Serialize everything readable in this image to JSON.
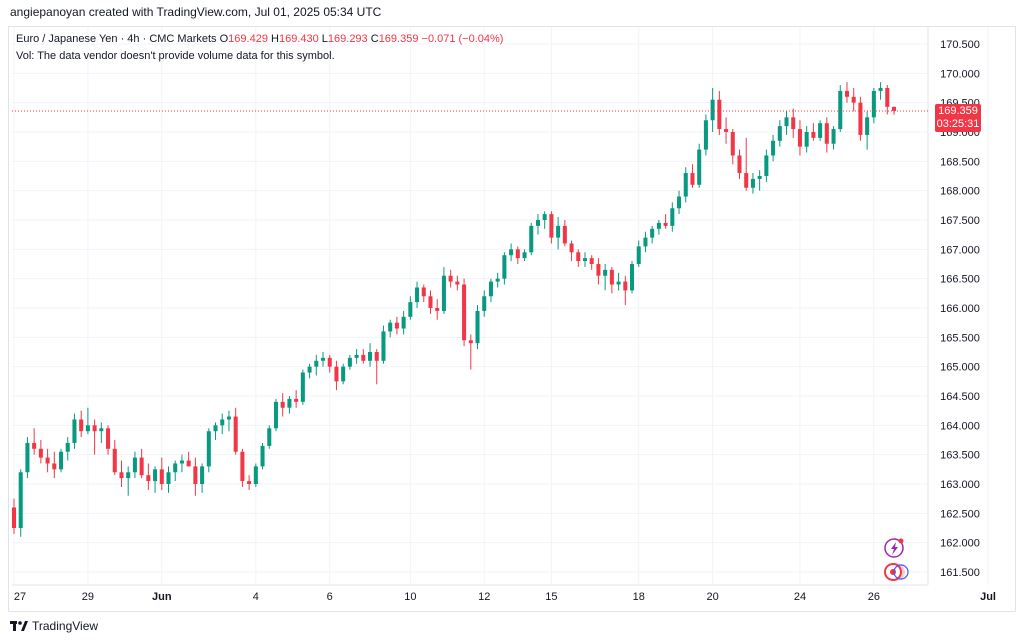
{
  "header": {
    "credit": "angiepanoyan created with TradingView.com, Jul 01, 2025 05:34 UTC"
  },
  "legend": {
    "symbol": "Euro / Japanese Yen · 4h · CMC Markets",
    "open_label": "O",
    "open": "169.429",
    "high_label": "H",
    "high": "169.430",
    "low_label": "L",
    "low": "169.293",
    "close_label": "C",
    "close": "169.359",
    "change": "−0.071 (−0.04%)",
    "volume_note": "Vol: The data vendor doesn't provide volume data for this symbol."
  },
  "price_tag": {
    "price": "169.359",
    "countdown": "03:25:31"
  },
  "footer": {
    "brand": "TradingView"
  },
  "colors": {
    "up": "#089981",
    "down": "#f23645",
    "grid": "#f0f3fa",
    "axis_text": "#131722"
  },
  "icons": [
    "lightning-icon",
    "replay-icon"
  ],
  "chart_data": {
    "type": "candlestick",
    "interval": "4h",
    "ylim": [
      161.3,
      170.8
    ],
    "y_ticks": [
      "170.500",
      "170.000",
      "169.500",
      "169.000",
      "168.500",
      "168.000",
      "167.500",
      "167.000",
      "166.500",
      "166.000",
      "165.500",
      "165.000",
      "164.500",
      "164.000",
      "163.500",
      "163.000",
      "162.500",
      "162.000",
      "161.500"
    ],
    "x_ticks": [
      {
        "label": "27",
        "index": 0
      },
      {
        "label": "29",
        "index": 11
      },
      {
        "label": "Jun",
        "index": 22
      },
      {
        "label": "4",
        "index": 36
      },
      {
        "label": "6",
        "index": 47
      },
      {
        "label": "10",
        "index": 59
      },
      {
        "label": "12",
        "index": 70
      },
      {
        "label": "15",
        "index": 80
      },
      {
        "label": "18",
        "index": 93
      },
      {
        "label": "20",
        "index": 104
      },
      {
        "label": "24",
        "index": 117
      },
      {
        "label": "26",
        "index": 128
      },
      {
        "label": "Jul",
        "index": 145
      }
    ],
    "last_price": 169.359,
    "candles": [
      [
        162.6,
        162.75,
        162.15,
        162.25
      ],
      [
        162.25,
        163.25,
        162.1,
        163.2
      ],
      [
        163.2,
        163.8,
        163.1,
        163.7
      ],
      [
        163.7,
        163.95,
        163.5,
        163.6
      ],
      [
        163.6,
        163.75,
        163.35,
        163.45
      ],
      [
        163.45,
        163.6,
        163.2,
        163.35
      ],
      [
        163.35,
        163.55,
        163.1,
        163.25
      ],
      [
        163.25,
        163.6,
        163.2,
        163.55
      ],
      [
        163.55,
        163.8,
        163.4,
        163.7
      ],
      [
        163.7,
        164.2,
        163.6,
        164.1
      ],
      [
        164.1,
        164.25,
        163.8,
        163.9
      ],
      [
        163.9,
        164.3,
        163.85,
        164.0
      ],
      [
        164.0,
        164.1,
        163.5,
        163.9
      ],
      [
        163.9,
        164.05,
        163.7,
        163.95
      ],
      [
        163.95,
        164.0,
        163.5,
        163.6
      ],
      [
        163.6,
        163.75,
        163.15,
        163.2
      ],
      [
        163.2,
        163.4,
        162.95,
        163.1
      ],
      [
        163.1,
        163.3,
        162.8,
        163.2
      ],
      [
        163.2,
        163.55,
        163.1,
        163.45
      ],
      [
        163.45,
        163.6,
        163.1,
        163.15
      ],
      [
        163.15,
        163.35,
        162.9,
        163.05
      ],
      [
        163.05,
        163.3,
        162.85,
        163.25
      ],
      [
        163.25,
        163.45,
        162.9,
        163.0
      ],
      [
        163.0,
        163.3,
        162.85,
        163.2
      ],
      [
        163.2,
        163.4,
        163.05,
        163.35
      ],
      [
        163.35,
        163.5,
        163.2,
        163.4
      ],
      [
        163.4,
        163.55,
        163.3,
        163.3
      ],
      [
        163.3,
        163.45,
        162.8,
        163.0
      ],
      [
        163.0,
        163.35,
        162.85,
        163.3
      ],
      [
        163.3,
        163.95,
        163.2,
        163.9
      ],
      [
        163.9,
        164.05,
        163.75,
        164.0
      ],
      [
        164.0,
        164.2,
        163.85,
        164.1
      ],
      [
        164.1,
        164.25,
        163.9,
        164.15
      ],
      [
        164.15,
        164.3,
        163.5,
        163.55
      ],
      [
        163.55,
        163.6,
        162.95,
        163.05
      ],
      [
        163.05,
        163.15,
        162.9,
        163.0
      ],
      [
        163.0,
        163.35,
        162.95,
        163.3
      ],
      [
        163.3,
        163.7,
        163.25,
        163.65
      ],
      [
        163.65,
        164.0,
        163.6,
        163.95
      ],
      [
        163.95,
        164.45,
        163.9,
        164.4
      ],
      [
        164.4,
        164.55,
        164.15,
        164.3
      ],
      [
        164.3,
        164.5,
        164.2,
        164.45
      ],
      [
        164.45,
        164.6,
        164.3,
        164.4
      ],
      [
        164.4,
        164.95,
        164.35,
        164.9
      ],
      [
        164.9,
        165.05,
        164.8,
        165.0
      ],
      [
        165.0,
        165.2,
        164.85,
        165.1
      ],
      [
        165.1,
        165.25,
        165.0,
        165.15
      ],
      [
        165.15,
        165.2,
        164.9,
        165.0
      ],
      [
        165.0,
        165.1,
        164.6,
        164.75
      ],
      [
        164.75,
        165.05,
        164.7,
        165.0
      ],
      [
        165.0,
        165.2,
        164.95,
        165.15
      ],
      [
        165.15,
        165.3,
        165.05,
        165.2
      ],
      [
        165.2,
        165.3,
        165.05,
        165.1
      ],
      [
        165.1,
        165.4,
        165.0,
        165.25
      ],
      [
        165.25,
        165.3,
        164.7,
        165.1
      ],
      [
        165.1,
        165.7,
        165.05,
        165.6
      ],
      [
        165.6,
        165.8,
        165.5,
        165.75
      ],
      [
        165.75,
        165.85,
        165.55,
        165.65
      ],
      [
        165.65,
        165.95,
        165.55,
        165.85
      ],
      [
        165.85,
        166.2,
        165.8,
        166.1
      ],
      [
        166.1,
        166.45,
        166.0,
        166.35
      ],
      [
        166.35,
        166.4,
        166.1,
        166.2
      ],
      [
        166.2,
        166.3,
        165.9,
        166.0
      ],
      [
        166.0,
        166.15,
        165.8,
        165.95
      ],
      [
        165.95,
        166.7,
        165.9,
        166.55
      ],
      [
        166.55,
        166.65,
        166.35,
        166.45
      ],
      [
        166.45,
        166.55,
        166.3,
        166.4
      ],
      [
        166.4,
        166.5,
        165.35,
        165.45
      ],
      [
        165.45,
        165.55,
        164.95,
        165.4
      ],
      [
        165.4,
        166.05,
        165.3,
        165.95
      ],
      [
        165.95,
        166.3,
        165.85,
        166.2
      ],
      [
        166.2,
        166.5,
        166.1,
        166.45
      ],
      [
        166.45,
        166.6,
        166.35,
        166.5
      ],
      [
        166.5,
        166.95,
        166.4,
        166.9
      ],
      [
        166.9,
        167.1,
        166.8,
        167.0
      ],
      [
        167.0,
        167.05,
        166.75,
        166.85
      ],
      [
        166.85,
        167.0,
        166.8,
        166.95
      ],
      [
        166.95,
        167.45,
        166.9,
        167.4
      ],
      [
        167.4,
        167.6,
        167.25,
        167.5
      ],
      [
        167.5,
        167.65,
        167.35,
        167.6
      ],
      [
        167.6,
        167.65,
        167.1,
        167.2
      ],
      [
        167.2,
        167.55,
        167.0,
        167.4
      ],
      [
        167.4,
        167.5,
        167.05,
        167.1
      ],
      [
        167.1,
        167.15,
        166.8,
        166.95
      ],
      [
        166.95,
        167.0,
        166.7,
        166.8
      ],
      [
        166.8,
        166.95,
        166.7,
        166.85
      ],
      [
        166.85,
        166.9,
        166.65,
        166.75
      ],
      [
        166.75,
        166.85,
        166.4,
        166.55
      ],
      [
        166.55,
        166.75,
        166.3,
        166.65
      ],
      [
        166.65,
        166.7,
        166.25,
        166.4
      ],
      [
        166.4,
        166.6,
        166.3,
        166.45
      ],
      [
        166.45,
        166.55,
        166.05,
        166.3
      ],
      [
        166.3,
        166.8,
        166.25,
        166.75
      ],
      [
        166.75,
        167.15,
        166.7,
        167.05
      ],
      [
        167.05,
        167.3,
        166.95,
        167.2
      ],
      [
        167.2,
        167.4,
        167.1,
        167.35
      ],
      [
        167.35,
        167.5,
        167.25,
        167.45
      ],
      [
        167.45,
        167.6,
        167.35,
        167.4
      ],
      [
        167.4,
        167.8,
        167.3,
        167.7
      ],
      [
        167.7,
        168.0,
        167.6,
        167.9
      ],
      [
        167.9,
        168.4,
        167.8,
        168.3
      ],
      [
        168.3,
        168.45,
        168.05,
        168.1
      ],
      [
        168.1,
        168.8,
        168.05,
        168.7
      ],
      [
        168.7,
        169.3,
        168.6,
        169.2
      ],
      [
        169.2,
        169.75,
        169.0,
        169.55
      ],
      [
        169.55,
        169.7,
        168.95,
        169.05
      ],
      [
        169.05,
        169.25,
        168.8,
        169.0
      ],
      [
        169.0,
        169.05,
        168.45,
        168.6
      ],
      [
        168.6,
        168.7,
        168.2,
        168.3
      ],
      [
        168.3,
        168.9,
        168.0,
        168.05
      ],
      [
        168.05,
        168.3,
        167.95,
        168.2
      ],
      [
        168.2,
        168.35,
        168.0,
        168.25
      ],
      [
        168.25,
        168.7,
        168.15,
        168.6
      ],
      [
        168.6,
        168.95,
        168.5,
        168.85
      ],
      [
        168.85,
        169.2,
        168.75,
        169.1
      ],
      [
        169.1,
        169.35,
        168.95,
        169.25
      ],
      [
        169.25,
        169.4,
        168.9,
        169.05
      ],
      [
        169.05,
        169.2,
        168.6,
        168.75
      ],
      [
        168.75,
        169.1,
        168.65,
        169.0
      ],
      [
        169.0,
        169.15,
        168.85,
        168.9
      ],
      [
        168.9,
        169.2,
        168.85,
        169.15
      ],
      [
        169.15,
        169.25,
        168.65,
        168.8
      ],
      [
        168.8,
        169.1,
        168.7,
        169.05
      ],
      [
        169.05,
        169.8,
        169.0,
        169.7
      ],
      [
        169.7,
        169.85,
        169.5,
        169.6
      ],
      [
        169.6,
        169.75,
        169.35,
        169.5
      ],
      [
        169.5,
        169.6,
        168.85,
        168.95
      ],
      [
        168.95,
        169.35,
        168.7,
        169.25
      ],
      [
        169.25,
        169.75,
        169.15,
        169.7
      ],
      [
        169.7,
        169.85,
        169.55,
        169.75
      ],
      [
        169.75,
        169.8,
        169.3,
        169.429
      ],
      [
        169.429,
        169.43,
        169.293,
        169.359
      ]
    ]
  }
}
